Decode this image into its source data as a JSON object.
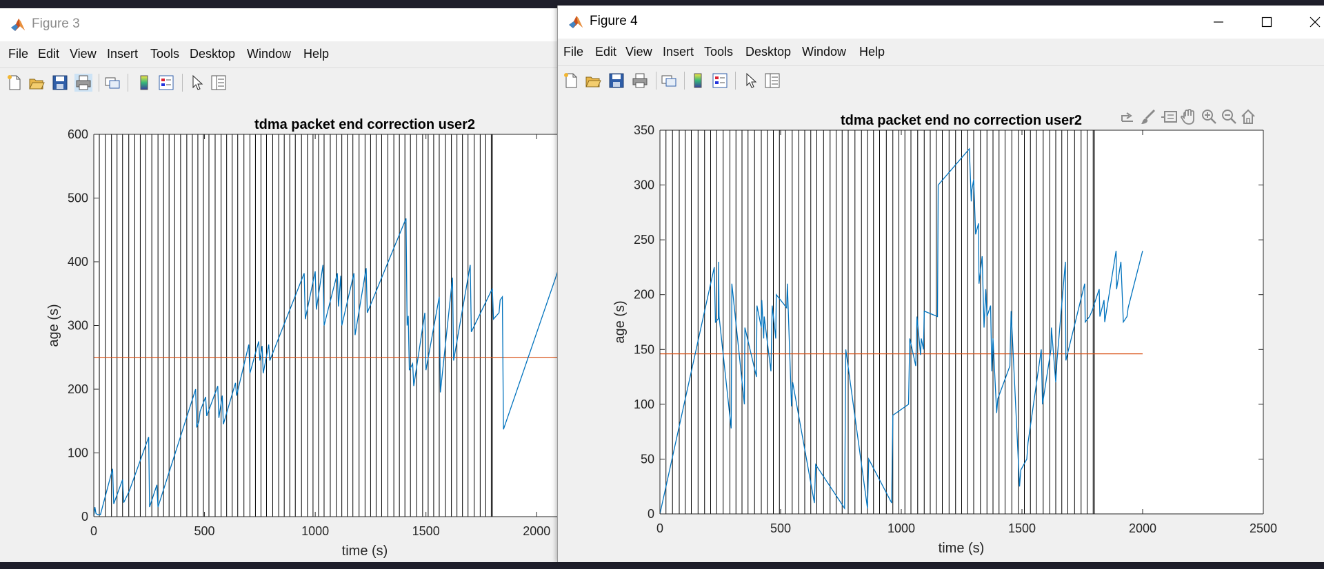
{
  "figure3": {
    "title": "Figure 3",
    "menu": [
      "File",
      "Edit",
      "View",
      "Insert",
      "Tools",
      "Desktop",
      "Window",
      "Help"
    ],
    "chart_data": {
      "type": "line",
      "title": "tdma packet end correction user2",
      "xlabel": "time (s)",
      "ylabel": "age (s)",
      "xlim": [
        0,
        2130
      ],
      "ylim": [
        0,
        600
      ],
      "xticks": [
        "0",
        "500",
        "1000",
        "1500",
        "2000"
      ],
      "yticks": [
        "0",
        "100",
        "200",
        "300",
        "400",
        "500",
        "600"
      ],
      "threshold": 250,
      "vlines": [
        25,
        52,
        80,
        105,
        130,
        158,
        185,
        210,
        235,
        262,
        290,
        315,
        340,
        365,
        392,
        420,
        445,
        470,
        495,
        520,
        548,
        575,
        600,
        625,
        650,
        678,
        705,
        730,
        755,
        780,
        808,
        835,
        860,
        885,
        910,
        938,
        965,
        990,
        1015,
        1040,
        1068,
        1095,
        1120,
        1145,
        1170,
        1198,
        1225,
        1250,
        1275,
        1300,
        1328,
        1355,
        1380,
        1405,
        1430,
        1458,
        1485,
        1510,
        1535,
        1560,
        1588,
        1615,
        1640,
        1665,
        1690,
        1718,
        1745,
        1770,
        1795,
        1800
      ],
      "series": [
        {
          "x": [
            0,
            5,
            10,
            18,
            30,
            85,
            90,
            130,
            135,
            160,
            248,
            252,
            285,
            290,
            460,
            465,
            475,
            480,
            505,
            510,
            560,
            565,
            580,
            585,
            640,
            645,
            700,
            705,
            745,
            750,
            760,
            765,
            790,
            795,
            950,
            955,
            1000,
            1005,
            1035,
            1040,
            1100,
            1105,
            1115,
            1120,
            1175,
            1180,
            1230,
            1235,
            1410,
            1415,
            1420,
            1425,
            1440,
            1445,
            1495,
            1500,
            1560,
            1565,
            1620,
            1625,
            1700,
            1705,
            1800,
            1805,
            1830,
            1835,
            1845,
            1850,
            2130
          ],
          "y": [
            0,
            15,
            5,
            3,
            3,
            75,
            20,
            58,
            22,
            40,
            125,
            15,
            50,
            15,
            200,
            140,
            150,
            165,
            188,
            158,
            205,
            155,
            190,
            145,
            210,
            190,
            270,
            225,
            275,
            245,
            268,
            225,
            270,
            245,
            382,
            310,
            385,
            325,
            395,
            300,
            382,
            330,
            378,
            300,
            382,
            285,
            390,
            320,
            468,
            300,
            315,
            230,
            240,
            205,
            320,
            230,
            345,
            195,
            375,
            245,
            395,
            290,
            358,
            310,
            320,
            340,
            345,
            137,
            420
          ]
        }
      ]
    }
  },
  "figure4": {
    "title": "Figure 4",
    "menu": [
      "File",
      "Edit",
      "View",
      "Insert",
      "Tools",
      "Desktop",
      "Window",
      "Help"
    ],
    "chart_data": {
      "type": "line",
      "title": "tdma packet end no correction user2",
      "xlabel": "time (s)",
      "ylabel": "age (s)",
      "xlim": [
        0,
        2500
      ],
      "ylim": [
        0,
        350
      ],
      "xticks": [
        "0",
        "500",
        "1000",
        "1500",
        "2000",
        "2500"
      ],
      "yticks": [
        "0",
        "50",
        "100",
        "150",
        "200",
        "250",
        "300",
        "350"
      ],
      "threshold": 146,
      "threshold_x": [
        0,
        2000
      ],
      "vlines": [
        25,
        52,
        80,
        105,
        130,
        158,
        185,
        210,
        235,
        262,
        290,
        315,
        340,
        365,
        392,
        420,
        445,
        470,
        495,
        520,
        548,
        575,
        600,
        625,
        650,
        678,
        705,
        730,
        755,
        780,
        808,
        835,
        860,
        885,
        910,
        938,
        965,
        990,
        1015,
        1040,
        1068,
        1095,
        1120,
        1145,
        1170,
        1198,
        1225,
        1250,
        1275,
        1300,
        1328,
        1355,
        1380,
        1405,
        1430,
        1458,
        1485,
        1510,
        1535,
        1560,
        1588,
        1615,
        1640,
        1665,
        1690,
        1718,
        1745,
        1770,
        1795,
        1800
      ],
      "series": [
        {
          "x": [
            0,
            225,
            230,
            242,
            243,
            245,
            295,
            298,
            350,
            352,
            400,
            402,
            420,
            422,
            430,
            432,
            460,
            465,
            480,
            482,
            525,
            528,
            545,
            550,
            640,
            645,
            765,
            770,
            860,
            865,
            960,
            965,
            1030,
            1035,
            1060,
            1065,
            1080,
            1083,
            1092,
            1095,
            1150,
            1153,
            1282,
            1290,
            1292,
            1300,
            1308,
            1320,
            1322,
            1335,
            1343,
            1350,
            1355,
            1370,
            1375,
            1380,
            1395,
            1400,
            1450,
            1455,
            1490,
            1495,
            1520,
            1525,
            1580,
            1585,
            1620,
            1622,
            1640,
            1645,
            1680,
            1682,
            1760,
            1762,
            1780,
            1790,
            1820,
            1823,
            1840,
            1843,
            1890,
            1892,
            1910,
            1920,
            1935,
            1940,
            2000
          ],
          "y": [
            0,
            225,
            175,
            178,
            230,
            180,
            78,
            210,
            100,
            170,
            125,
            190,
            170,
            195,
            160,
            180,
            130,
            190,
            160,
            200,
            188,
            210,
            98,
            120,
            10,
            45,
            5,
            150,
            5,
            50,
            10,
            90,
            100,
            160,
            135,
            180,
            145,
            160,
            150,
            185,
            180,
            300,
            333,
            285,
            295,
            305,
            255,
            265,
            210,
            235,
            170,
            205,
            180,
            190,
            130,
            160,
            92,
            105,
            135,
            185,
            25,
            40,
            50,
            65,
            150,
            100,
            150,
            170,
            120,
            140,
            230,
            140,
            210,
            175,
            180,
            185,
            205,
            180,
            195,
            175,
            240,
            205,
            230,
            175,
            180,
            188,
            240
          ]
        }
      ]
    }
  }
}
